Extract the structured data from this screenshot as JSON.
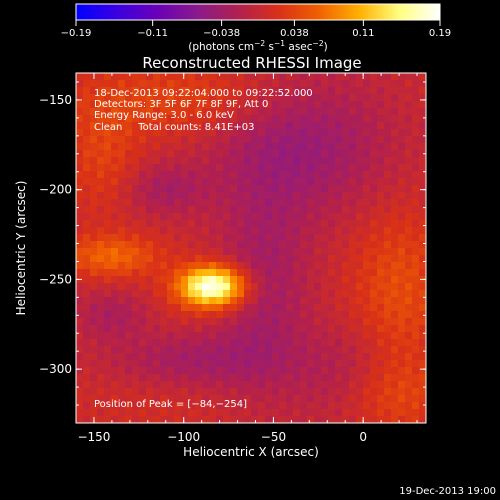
{
  "footer_timestamp": "19-Dec-2013 19:00",
  "chart_data": {
    "type": "heatmap",
    "title": "Reconstructed RHESSI Image",
    "xlabel": "Heliocentric X (arcsec)",
    "ylabel": "Heliocentric Y (arcsec)",
    "xlim": [
      -160,
      35
    ],
    "ylim": [
      -330,
      -135
    ],
    "x_ticks": [
      -150,
      -100,
      -50,
      0
    ],
    "x_tick_labels": [
      "−150",
      "−100",
      "−50",
      "0"
    ],
    "y_ticks": [
      -150,
      -200,
      -250,
      -300
    ],
    "y_tick_labels": [
      "−150",
      "−200",
      "−250",
      "−300"
    ],
    "colorbar": {
      "range": [
        -0.19,
        0.19
      ],
      "ticks": [
        -0.19,
        -0.11,
        -0.038,
        0.038,
        0.11,
        0.19
      ],
      "tick_labels": [
        "−0.19",
        "−0.11",
        "−0.038",
        "0.038",
        "0.11",
        "0.19"
      ],
      "units_main": "(photons cm",
      "units_sup1": "−2",
      "units_mid": " s",
      "units_sup2": "−1",
      "units_mid2": " asec",
      "units_sup3": "−2",
      "units_end": ")",
      "colors": [
        "#0000ff",
        "#3a00e0",
        "#6a00b8",
        "#8a1a8a",
        "#b02050",
        "#d83018",
        "#f06000",
        "#ffb000",
        "#ffff80",
        "#ffffff"
      ]
    },
    "annotations": [
      "18-Dec-2013 09:22:04.000 to 09:22:52.000",
      "Detectors: 3F 5F 6F 7F 8F 9F, Att 0",
      "Energy Range: 3.0 - 6.0 keV",
      "Clean     Total counts: 8.41E+03"
    ],
    "peak_label": "Position of Peak = [−84,−254]",
    "peak": [
      -84,
      -254
    ],
    "sources": [
      {
        "x": -84,
        "y": -254,
        "amp": 0.19,
        "sx": 13,
        "sy": 8
      },
      {
        "x": -140,
        "y": -237,
        "amp": 0.06,
        "sx": 18,
        "sy": 8
      },
      {
        "x": -100,
        "y": -150,
        "amp": 0.035,
        "sx": 40,
        "sy": 14
      },
      {
        "x": -145,
        "y": -180,
        "amp": 0.03,
        "sx": 14,
        "sy": 22
      },
      {
        "x": 20,
        "y": -255,
        "amp": 0.04,
        "sx": 18,
        "sy": 30
      },
      {
        "x": 15,
        "y": -315,
        "amp": 0.035,
        "sx": 22,
        "sy": 15
      },
      {
        "x": -115,
        "y": -300,
        "amp": 0.015,
        "sx": 30,
        "sy": 22
      },
      {
        "x": -35,
        "y": -175,
        "amp": -0.05,
        "sx": 35,
        "sy": 28
      },
      {
        "x": -55,
        "y": -255,
        "amp": -0.04,
        "sx": 18,
        "sy": 40
      },
      {
        "x": -100,
        "y": -295,
        "amp": -0.05,
        "sx": 32,
        "sy": 12
      },
      {
        "x": -140,
        "y": -270,
        "amp": -0.035,
        "sx": 15,
        "sy": 10
      },
      {
        "x": -110,
        "y": -200,
        "amp": -0.035,
        "sx": 16,
        "sy": 10
      },
      {
        "x": -10,
        "y": -305,
        "amp": -0.03,
        "sx": 20,
        "sy": 20
      }
    ]
  }
}
